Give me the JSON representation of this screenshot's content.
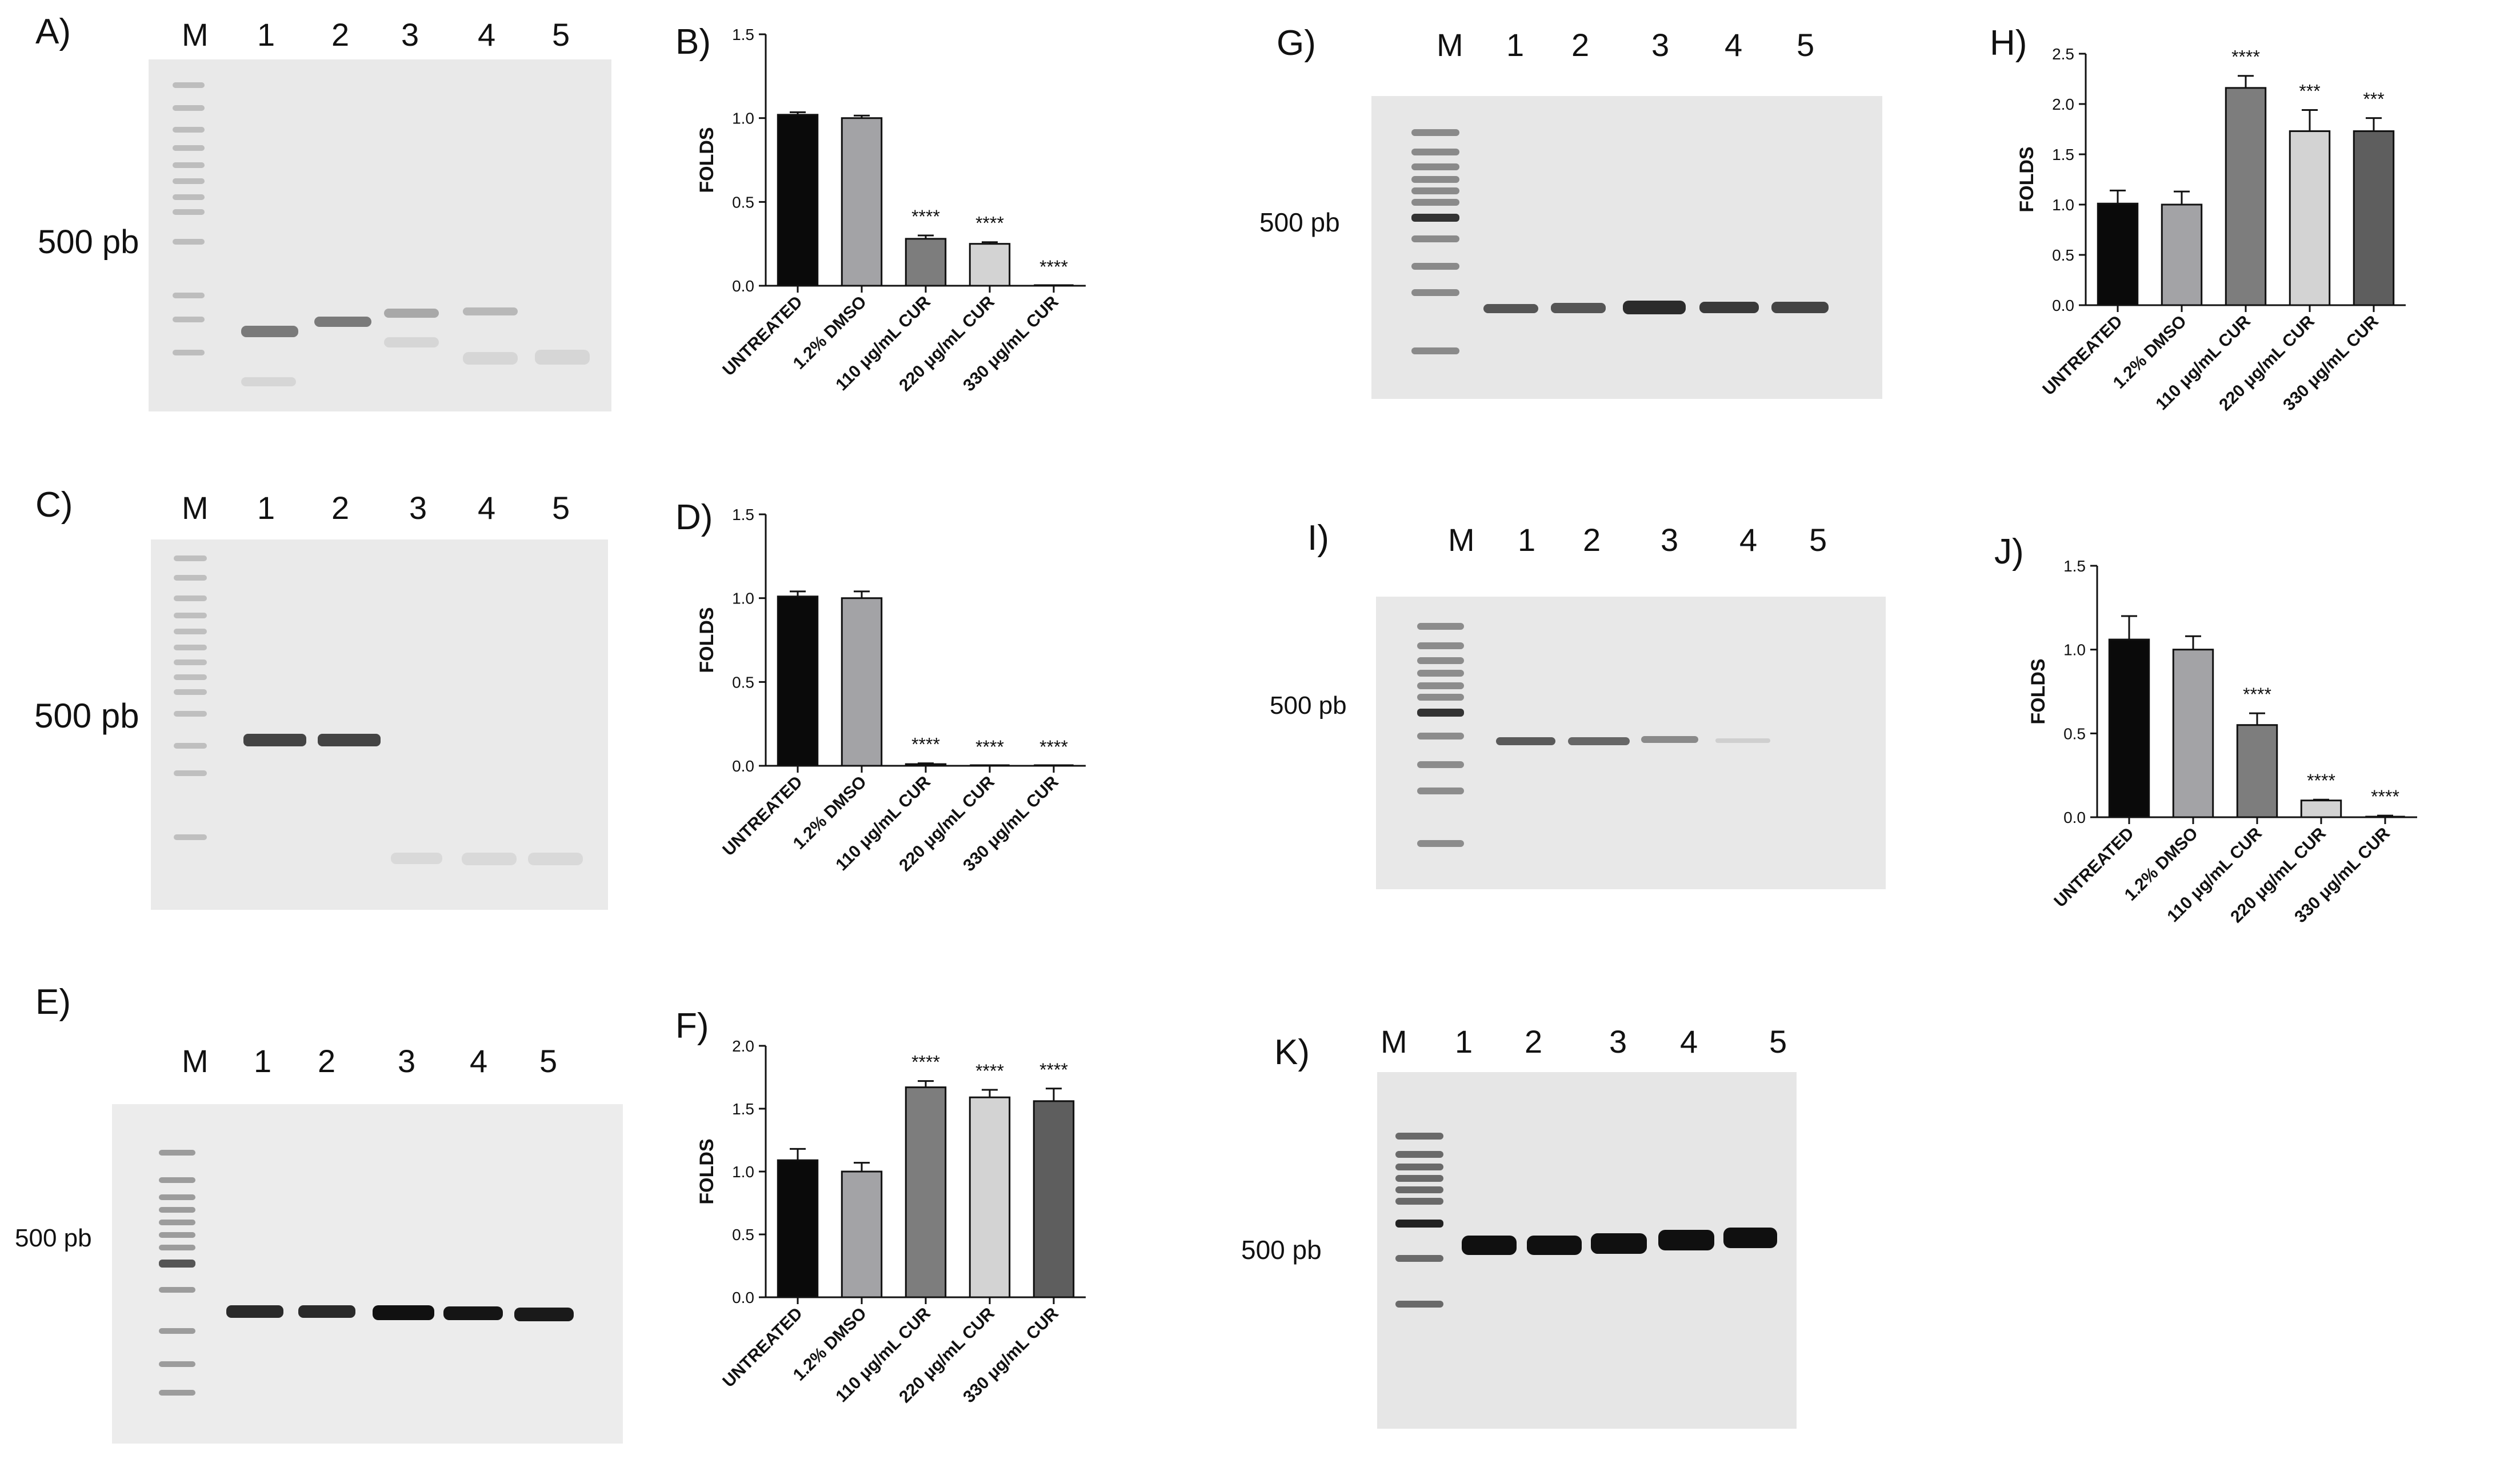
{
  "gels": [
    {
      "id": "gel-a",
      "letter": "A)",
      "marker": "M",
      "lanes": [
        "1",
        "2",
        "3",
        "4",
        "5"
      ],
      "size_label": "500 pb",
      "bg": "#e9e9e9"
    },
    {
      "id": "gel-c",
      "letter": "C)",
      "marker": "M",
      "lanes": [
        "1",
        "2",
        "3",
        "4",
        "5"
      ],
      "size_label": "500 pb",
      "bg": "#eaeaea"
    },
    {
      "id": "gel-e",
      "letter": "E)",
      "marker": "M",
      "lanes": [
        "1",
        "2",
        "3",
        "4",
        "5"
      ],
      "size_label": "500 pb",
      "bg": "#ececec"
    },
    {
      "id": "gel-g",
      "letter": "G)",
      "marker": "M",
      "lanes": [
        "1",
        "2",
        "3",
        "4",
        "5"
      ],
      "size_label": "500 pb",
      "bg": "#e7e7e7"
    },
    {
      "id": "gel-i",
      "letter": "I)",
      "marker": "M",
      "lanes": [
        "1",
        "2",
        "3",
        "4",
        "5"
      ],
      "size_label": "500 pb",
      "bg": "#e8e8e8"
    },
    {
      "id": "gel-k",
      "letter": "K)",
      "marker": "M",
      "lanes": [
        "1",
        "2",
        "3",
        "4",
        "5"
      ],
      "size_label": "500 pb",
      "bg": "#e6e6e6"
    }
  ],
  "chart_data": [
    {
      "id": "chart-b",
      "letter": "B)",
      "type": "bar",
      "ylabel": "FOLDS",
      "categories": [
        "UNTREATED",
        "1.2% DMSO",
        "110 μg/mL CUR",
        "220 μg/mL CUR",
        "330 μg/mL CUR"
      ],
      "values": [
        1.02,
        1.0,
        0.28,
        0.25,
        0.0
      ],
      "errors": [
        0.015,
        0.015,
        0.02,
        0.01,
        0.0
      ],
      "significance": [
        "",
        "",
        "****",
        "****",
        "****"
      ],
      "ylim": [
        0,
        1.5
      ],
      "yticks": [
        "0.0",
        "0.5",
        "1.0",
        "1.5"
      ],
      "ytick_values": [
        0,
        0.5,
        1.0,
        1.5
      ],
      "colors": [
        "#0a0a0a",
        "#a3a3a6",
        "#7d7d7d",
        "#d3d3d3",
        "#2a2a2a"
      ]
    },
    {
      "id": "chart-d",
      "letter": "D)",
      "type": "bar",
      "ylabel": "FOLDS",
      "categories": [
        "UNTREATED",
        "1.2% DMSO",
        "110 μg/mL CUR",
        "220 μg/mL CUR",
        "330 μg/mL CUR"
      ],
      "values": [
        1.01,
        1.0,
        0.01,
        0.0,
        0.0
      ],
      "errors": [
        0.03,
        0.04,
        0.005,
        0.0,
        0.0
      ],
      "significance": [
        "",
        "",
        "****",
        "****",
        "****"
      ],
      "ylim": [
        0,
        1.5
      ],
      "yticks": [
        "0.0",
        "0.5",
        "1.0",
        "1.5"
      ],
      "ytick_values": [
        0,
        0.5,
        1.0,
        1.5
      ],
      "colors": [
        "#0a0a0a",
        "#a3a3a6",
        "#7d7d7d",
        "#d3d3d3",
        "#2a2a2a"
      ]
    },
    {
      "id": "chart-f",
      "letter": "F)",
      "type": "bar",
      "ylabel": "FOLDS",
      "categories": [
        "UNTREATED",
        "1.2% DMSO",
        "110 μg/mL CUR",
        "220 μg/mL CUR",
        "330 μg/mL CUR"
      ],
      "values": [
        1.09,
        1.0,
        1.67,
        1.59,
        1.56
      ],
      "errors": [
        0.09,
        0.07,
        0.05,
        0.06,
        0.1
      ],
      "significance": [
        "",
        "",
        "****",
        "****",
        "****"
      ],
      "ylim": [
        0,
        2.0
      ],
      "yticks": [
        "0.0",
        "0.5",
        "1.0",
        "1.5",
        "2.0"
      ],
      "ytick_values": [
        0,
        0.5,
        1.0,
        1.5,
        2.0
      ],
      "colors": [
        "#0a0a0a",
        "#a3a3a6",
        "#7d7d7d",
        "#d3d3d3",
        "#5e5e5e"
      ]
    },
    {
      "id": "chart-h",
      "letter": "H)",
      "type": "bar",
      "ylabel": "FOLDS",
      "categories": [
        "UNTREATED",
        "1.2% DMSO",
        "110 μg/mL CUR",
        "220 μg/mL CUR",
        "330 μg/mL CUR"
      ],
      "values": [
        1.01,
        1.0,
        2.16,
        1.73,
        1.73
      ],
      "errors": [
        0.13,
        0.13,
        0.12,
        0.21,
        0.13
      ],
      "significance": [
        "",
        "",
        "****",
        "***",
        "***"
      ],
      "ylim": [
        0,
        2.5
      ],
      "yticks": [
        "0.0",
        "0.5",
        "1.0",
        "1.5",
        "2.0",
        "2.5"
      ],
      "ytick_values": [
        0,
        0.5,
        1.0,
        1.5,
        2.0,
        2.5
      ],
      "colors": [
        "#0a0a0a",
        "#a3a3a6",
        "#7d7d7d",
        "#d3d3d3",
        "#5e5e5e"
      ]
    },
    {
      "id": "chart-j",
      "letter": "J)",
      "type": "bar",
      "ylabel": "FOLDS",
      "categories": [
        "UNTREATED",
        "1.2% DMSO",
        "110 μg/mL CUR",
        "220 μg/mL CUR",
        "330 μg/mL CUR"
      ],
      "values": [
        1.06,
        1.0,
        0.55,
        0.1,
        0.0
      ],
      "errors": [
        0.14,
        0.08,
        0.07,
        0.005,
        0.01
      ],
      "significance": [
        "",
        "",
        "****",
        "****",
        "****"
      ],
      "ylim": [
        0,
        1.5
      ],
      "yticks": [
        "0.0",
        "0.5",
        "1.0",
        "1.5"
      ],
      "ytick_values": [
        0,
        0.5,
        1.0,
        1.5
      ],
      "colors": [
        "#0a0a0a",
        "#a3a3a6",
        "#7d7d7d",
        "#d3d3d3",
        "#2a2a2a"
      ]
    }
  ]
}
